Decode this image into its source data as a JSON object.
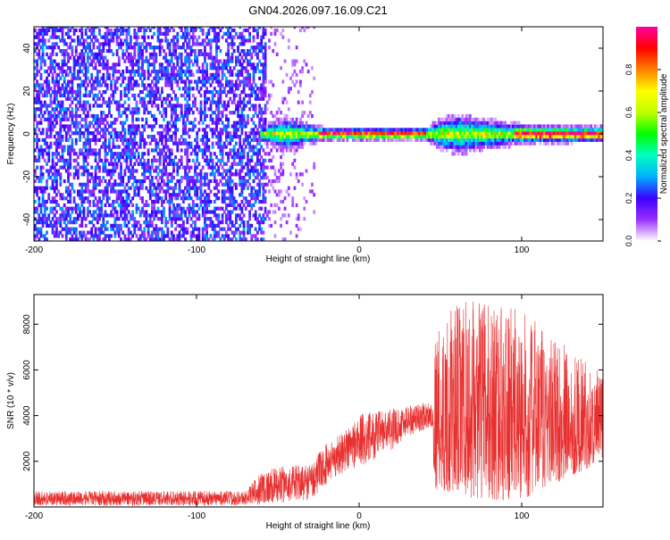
{
  "title": "GN04.2026.097.16.09.C21",
  "chart_data": [
    {
      "type": "heatmap",
      "xlabel": "Height of straight line (km)",
      "ylabel": "Frequency (Hz)",
      "xlim": [
        -200,
        150
      ],
      "ylim": [
        -50,
        50
      ],
      "xticks": [
        -200,
        -100,
        0,
        100
      ],
      "yticks": [
        -40,
        -20,
        0,
        20,
        40
      ],
      "colorbar": {
        "label": "Normalized spectral amplitude",
        "range": [
          0,
          1
        ],
        "ticks": [
          "0.0",
          "0.2",
          "0.4",
          "0.6",
          "0.8"
        ],
        "colors": [
          "#ffffff",
          "#9b30ff",
          "#3b00ff",
          "#00b0ff",
          "#00ffc0",
          "#00ff00",
          "#c0ff00",
          "#ffff00",
          "#ff8000",
          "#ff0000",
          "#ff00a0"
        ]
      },
      "regions": [
        {
          "x_range": [
            -200,
            -58
          ],
          "freq_range": [
            -50,
            50
          ],
          "description": "broadband noise",
          "amplitude": 0.15
        },
        {
          "x_range": [
            -58,
            -28
          ],
          "freq_range": [
            -50,
            50
          ],
          "description": "sparse noise",
          "amplitude": 0.05
        },
        {
          "x_range": [
            -62,
            150
          ],
          "freq_center": 0,
          "freq_halfwidth": 3,
          "description": "tone",
          "amplitude": 0.95
        }
      ],
      "tone_spread": [
        {
          "x": -60,
          "halfwidth": 4
        },
        {
          "x": -45,
          "halfwidth": 9
        },
        {
          "x": -35,
          "halfwidth": 6
        },
        {
          "x": -20,
          "halfwidth": 3
        },
        {
          "x": 40,
          "halfwidth": 3
        },
        {
          "x": 50,
          "halfwidth": 8
        },
        {
          "x": 60,
          "halfwidth": 10
        },
        {
          "x": 75,
          "halfwidth": 8
        },
        {
          "x": 100,
          "halfwidth": 5
        },
        {
          "x": 150,
          "halfwidth": 4
        }
      ]
    },
    {
      "type": "line",
      "xlabel": "Height of straight line (km)",
      "ylabel": "SNR (10 * v/v)",
      "xlim": [
        -200,
        150
      ],
      "ylim": [
        0,
        9300
      ],
      "xticks": [
        -200,
        -100,
        0,
        100
      ],
      "yticks": [
        2000,
        4000,
        6000,
        8000
      ],
      "series_color": "#e83030",
      "envelope": {
        "x": [
          -200,
          -150,
          -100,
          -70,
          -60,
          -45,
          -30,
          -20,
          -10,
          0,
          20,
          30,
          45,
          46,
          60,
          80,
          100,
          120,
          150
        ],
        "low": [
          50,
          50,
          50,
          80,
          100,
          200,
          300,
          1000,
          1500,
          1700,
          2500,
          3100,
          3500,
          800,
          500,
          300,
          300,
          1000,
          2000
        ],
        "high": [
          700,
          700,
          700,
          700,
          1600,
          1800,
          1900,
          2800,
          3300,
          4100,
          4300,
          4500,
          4600,
          7500,
          9000,
          9100,
          8600,
          7500,
          5800
        ]
      }
    }
  ]
}
